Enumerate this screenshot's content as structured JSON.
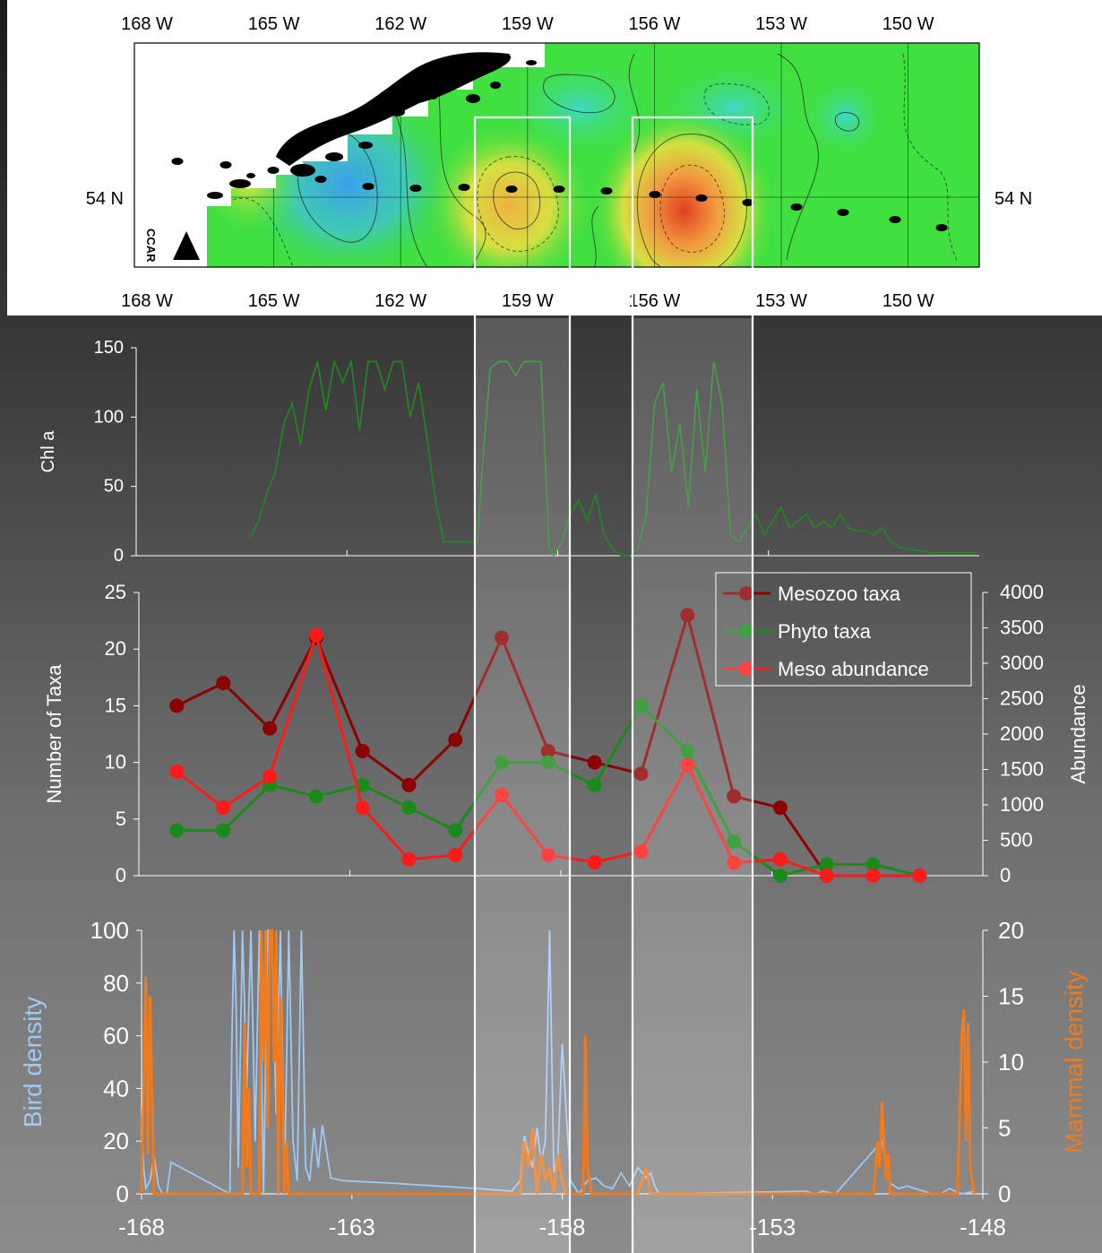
{
  "map": {
    "lon_labels": [
      "168 W",
      "165 W",
      "162 W",
      "159 W",
      "156 W",
      "153 W",
      "150 W"
    ],
    "lon_values": [
      -168,
      -165,
      -162,
      -159,
      -156,
      -153,
      -150
    ],
    "lat_label": "54 N",
    "logo_text": "CCAR",
    "colors": {
      "low": "#3aa0e8",
      "mid": "#40e040",
      "high": "#e04020",
      "land": "#000000"
    }
  },
  "chart_data": [
    {
      "type": "line",
      "ylabel": "Chl a",
      "xlim": [
        -168,
        -148
      ],
      "ylim": [
        0,
        150
      ],
      "yticks": [
        0,
        50,
        100,
        150
      ],
      "series": [
        {
          "color": "#1f8a1f",
          "x": [
            -165.3,
            -165.1,
            -164.9,
            -164.7,
            -164.5,
            -164.3,
            -164.1,
            -163.9,
            -163.7,
            -163.5,
            -163.3,
            -163.1,
            -162.9,
            -162.7,
            -162.5,
            -162.3,
            -162.1,
            -161.9,
            -161.7,
            -161.5,
            -161.3,
            -161.1,
            -160.9,
            -160.7,
            -160.5,
            -160.3,
            -160.1,
            -159.9,
            -159.8,
            -159.6,
            -159.4,
            -159.2,
            -159.0,
            -158.8,
            -158.6,
            -158.4,
            -158.2,
            -158.1,
            -157.9,
            -157.7,
            -157.5,
            -157.3,
            -157.1,
            -156.9,
            -156.7,
            -156.5,
            -156.3,
            -156.1,
            -155.9,
            -155.7,
            -155.5,
            -155.3,
            -155.1,
            -154.9,
            -154.7,
            -154.5,
            -154.3,
            -154.1,
            -153.9,
            -153.7,
            -153.5,
            -153.3,
            -153.1,
            -152.9,
            -152.7,
            -152.5,
            -152.3,
            -152.1,
            -151.9,
            -151.7,
            -151.5,
            -151.3,
            -151.1,
            -150.9,
            -150.7,
            -150.5,
            -150.3,
            -150.1,
            -149.9,
            -149.7,
            -149.5,
            -149.3,
            -149.1,
            -148.9,
            -148.7,
            -148.5,
            -148.3,
            -148.1
          ],
          "y": [
            12,
            25,
            45,
            60,
            95,
            110,
            80,
            120,
            140,
            105,
            140,
            125,
            140,
            90,
            140,
            140,
            120,
            140,
            140,
            100,
            125,
            85,
            40,
            10,
            10,
            10,
            10,
            10,
            60,
            135,
            140,
            140,
            130,
            140,
            140,
            140,
            5,
            0,
            10,
            30,
            40,
            25,
            45,
            15,
            5,
            0,
            0,
            5,
            30,
            110,
            125,
            60,
            95,
            35,
            120,
            60,
            140,
            110,
            15,
            10,
            20,
            30,
            15,
            25,
            35,
            20,
            25,
            30,
            20,
            25,
            20,
            30,
            20,
            18,
            18,
            15,
            20,
            10,
            6,
            5,
            4,
            3,
            2,
            2,
            2,
            2,
            2,
            2
          ]
        }
      ]
    },
    {
      "type": "line",
      "ylabel": "Number of Taxa",
      "y2label": "Abundance",
      "xlim": [
        -168,
        -148
      ],
      "ylim": [
        0,
        25
      ],
      "y2lim": [
        0,
        4000
      ],
      "yticks": [
        0,
        5,
        10,
        15,
        20,
        25
      ],
      "y2ticks": [
        0,
        500,
        1000,
        1500,
        2000,
        2500,
        3000,
        3500,
        4000
      ],
      "legend_placement": "top-right",
      "x": [
        -167.1,
        -166.0,
        -164.9,
        -163.8,
        -162.7,
        -161.6,
        -160.5,
        -159.4,
        -158.3,
        -157.2,
        -156.1,
        -155.0,
        -153.9,
        -152.8,
        -151.7,
        -150.6,
        -149.5
      ],
      "series": [
        {
          "name": "Mesozoo taxa",
          "color": "#8b0000",
          "axis": "left",
          "values": [
            15,
            17,
            13,
            21,
            11,
            8,
            12,
            21,
            11,
            10,
            9,
            23,
            7,
            6,
            0,
            null,
            null
          ]
        },
        {
          "name": "Phyto taxa",
          "color": "#1a8a1a",
          "axis": "left",
          "values": [
            4,
            4,
            8,
            7,
            8,
            6,
            4,
            10,
            10,
            8,
            15,
            11,
            3,
            0,
            1,
            1,
            0
          ]
        },
        {
          "name": "Meso abundance",
          "color": "#ff1a1a",
          "axis": "right",
          "values": [
            1470,
            960,
            1400,
            3400,
            960,
            230,
            290,
            1140,
            290,
            190,
            340,
            1560,
            180,
            230,
            0,
            0,
            0
          ]
        }
      ]
    },
    {
      "type": "line",
      "ylabel": "Bird density",
      "y2label": "Mammal density",
      "xlim": [
        -168,
        -148
      ],
      "ylim": [
        0,
        100
      ],
      "y2lim": [
        0,
        20
      ],
      "yticks": [
        0,
        20,
        40,
        60,
        80,
        100
      ],
      "y2ticks": [
        0,
        5,
        10,
        15,
        20
      ],
      "xticks": [
        -168,
        -163,
        -158,
        -153,
        -148
      ],
      "series": [
        {
          "name": "Bird density",
          "color": "#9ec9f5",
          "axis": "left",
          "x": [
            -168.0,
            -167.95,
            -167.9,
            -167.8,
            -167.7,
            -167.6,
            -167.5,
            -167.4,
            -167.3,
            -165.9,
            -165.85,
            -165.8,
            -165.75,
            -165.7,
            -165.6,
            -165.5,
            -165.4,
            -165.3,
            -165.2,
            -165.1,
            -165.0,
            -164.9,
            -164.8,
            -164.7,
            -164.6,
            -164.5,
            -164.4,
            -164.3,
            -164.2,
            -164.1,
            -164.0,
            -163.9,
            -163.8,
            -163.7,
            -163.5,
            -163.2,
            -162.0,
            -161.0,
            -160.0,
            -159.2,
            -159.0,
            -158.9,
            -158.8,
            -158.7,
            -158.6,
            -158.5,
            -158.4,
            -158.3,
            -158.2,
            -158.1,
            -158.0,
            -157.9,
            -157.8,
            -157.6,
            -157.4,
            -157.2,
            -157.0,
            -156.8,
            -156.6,
            -156.4,
            -156.2,
            -156.0,
            -155.9,
            -155.8,
            -155.7,
            -152.2,
            -152.0,
            -151.8,
            -151.5,
            -150.4,
            -150.2,
            -150.0,
            -149.8,
            -149.6,
            -149.4,
            -149.2,
            -149.0,
            -148.8,
            -148.5,
            -148.2
          ],
          "values": [
            32,
            10,
            2,
            5,
            14,
            3,
            0,
            0,
            12,
            0,
            60,
            100,
            70,
            10,
            100,
            40,
            100,
            20,
            100,
            0,
            100,
            100,
            30,
            100,
            5,
            100,
            20,
            5,
            100,
            10,
            5,
            25,
            10,
            26,
            6,
            5,
            4,
            3,
            2,
            1,
            5,
            22,
            15,
            10,
            25,
            12,
            20,
            100,
            8,
            15,
            57,
            30,
            5,
            0,
            5,
            6,
            3,
            2,
            8,
            3,
            10,
            6,
            8,
            3,
            0,
            1,
            0,
            1,
            0,
            20,
            4,
            2,
            3,
            2,
            1,
            0,
            0,
            2,
            0,
            1
          ]
        },
        {
          "name": "Mammal density",
          "color": "#f07a1c",
          "axis": "right",
          "x": [
            -168.0,
            -167.9,
            -167.85,
            -167.8,
            -167.7,
            -167.65,
            -167.6,
            -167.5,
            -165.6,
            -165.55,
            -165.5,
            -165.45,
            -165.4,
            -165.2,
            -165.15,
            -165.1,
            -165.05,
            -165.0,
            -164.95,
            -164.9,
            -164.85,
            -164.8,
            -164.75,
            -164.7,
            -164.6,
            -164.55,
            -164.5,
            -163.5,
            -159.0,
            -158.9,
            -158.8,
            -158.7,
            -158.6,
            -158.5,
            -158.4,
            -158.3,
            -158.2,
            -158.1,
            -158.0,
            -157.9,
            -157.6,
            -157.5,
            -157.45,
            -157.4,
            -157.3,
            -156.2,
            -156.1,
            -156.0,
            -155.9,
            -155.8,
            -150.6,
            -150.5,
            -150.45,
            -150.4,
            -150.3,
            -150.25,
            -150.2,
            -150.1,
            -148.6,
            -148.5,
            -148.45,
            -148.4,
            -148.35,
            -148.3,
            -148.2
          ],
          "values": [
            0,
            16.5,
            3,
            15,
            0,
            0,
            0,
            0,
            0,
            13,
            2,
            8,
            0,
            0,
            20,
            10,
            20,
            5,
            20,
            20,
            10,
            20,
            0,
            15,
            0,
            4,
            0,
            0,
            0,
            4,
            2,
            5,
            0,
            3,
            1,
            2,
            0,
            3,
            1,
            0,
            0,
            0,
            12,
            2,
            0,
            0,
            1,
            2,
            0,
            0,
            0,
            4,
            2,
            7,
            1,
            3,
            0,
            0,
            0,
            12,
            14,
            4,
            13,
            2,
            0
          ]
        }
      ]
    }
  ]
}
